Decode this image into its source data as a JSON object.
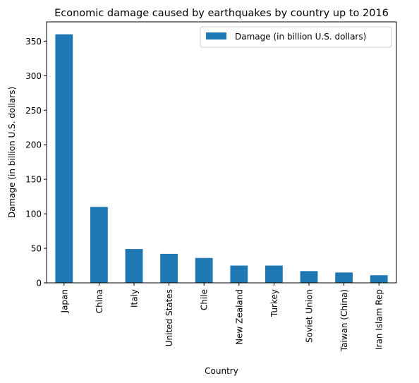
{
  "chart_data": {
    "type": "bar",
    "title": "Economic damage caused by earthquakes by country up to 2016",
    "xlabel": "Country",
    "ylabel": "Damage (in billion U.S. dollars)",
    "categories": [
      "Japan",
      "China",
      "Italy",
      "United States",
      "Chile",
      "New Zealand",
      "Turkey",
      "Soviet Union",
      "Taiwan (China)",
      "Iran Islam Rep"
    ],
    "series": [
      {
        "name": "Damage (in billion U.S. dollars)",
        "values": [
          360,
          110,
          49,
          42,
          36,
          25,
          25,
          17,
          15,
          11
        ],
        "color": "#1f77b4"
      }
    ],
    "yticks": [
      0,
      50,
      100,
      150,
      200,
      250,
      300,
      350
    ],
    "ylim": [
      0,
      378
    ],
    "grid": false,
    "legend_position": "top-right"
  }
}
